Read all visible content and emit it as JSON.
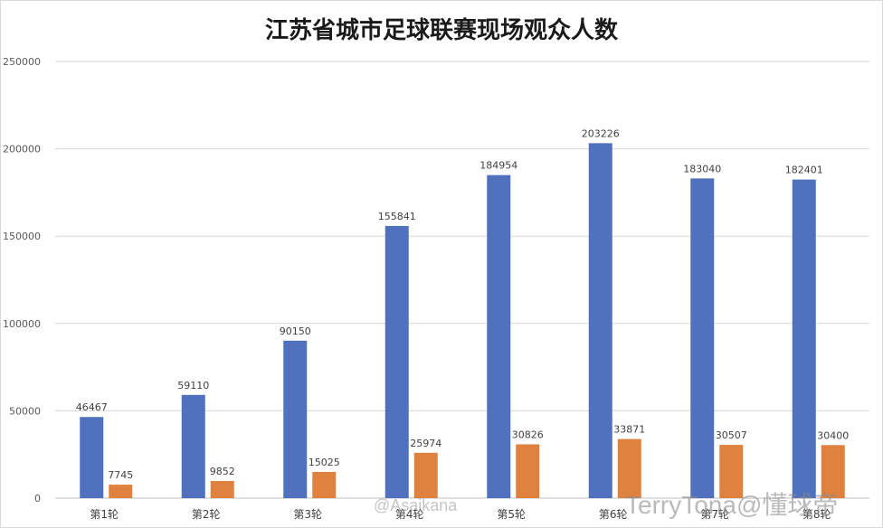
{
  "chart_data": {
    "type": "bar",
    "title": "江苏省城市足球联赛现场观众人数",
    "categories": [
      "第1轮",
      "第2轮",
      "第3轮",
      "第4轮",
      "第5轮",
      "第6轮",
      "第7轮",
      "第8轮"
    ],
    "series": [
      {
        "values": [
          46467,
          59110,
          90150,
          155841,
          184954,
          203226,
          183040,
          182401
        ],
        "color": "#4f71be"
      },
      {
        "values": [
          7745,
          9852,
          15025,
          25974,
          30826,
          33871,
          30507,
          30400
        ],
        "color": "#e0823f"
      }
    ],
    "ylim": [
      0,
      250000
    ],
    "yticks": [
      0,
      50000,
      100000,
      150000,
      200000,
      250000
    ],
    "grid": true,
    "data_labels": true
  },
  "watermarks": {
    "right": "TerryTona@懂球帝",
    "center": "@Asaikana"
  }
}
